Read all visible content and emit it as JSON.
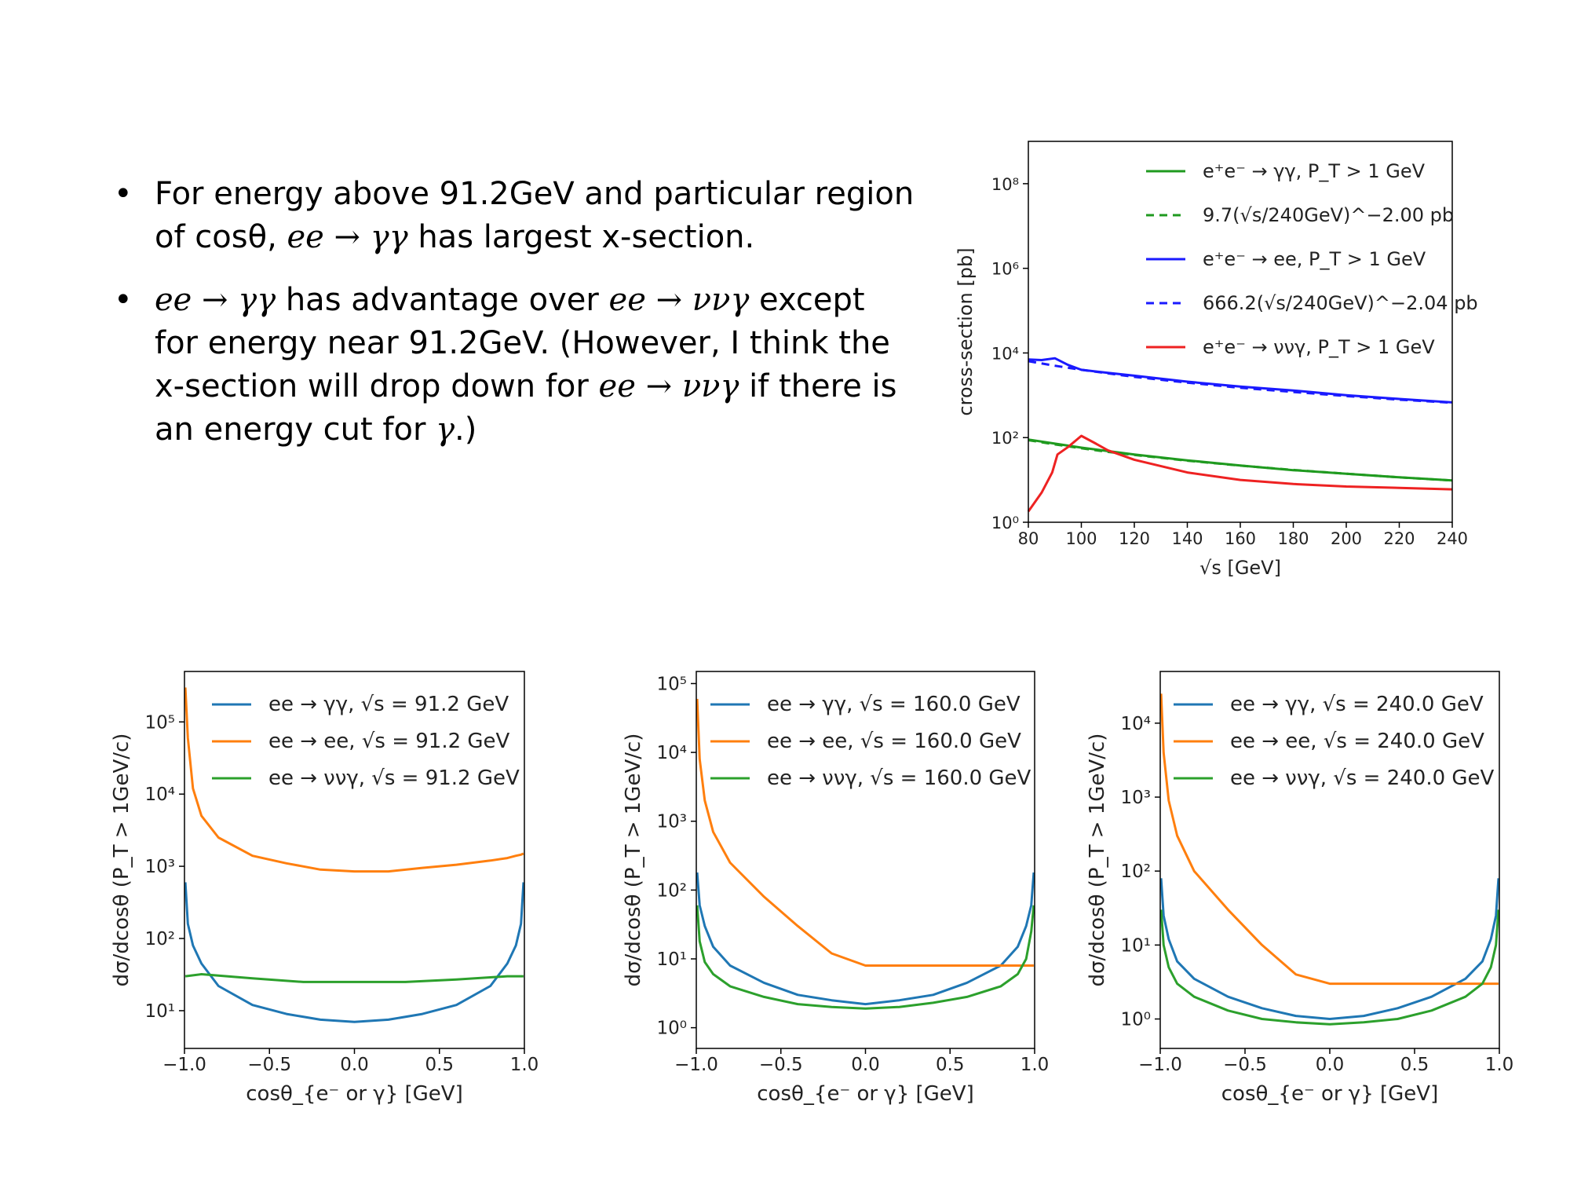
{
  "bullets": [
    {
      "parts": [
        {
          "t": "For energy above 91.2GeV and particular region of ",
          "m": false
        },
        {
          "t": "cosθ",
          "m": false
        },
        {
          "t": ", ",
          "m": false
        },
        {
          "t": "ee → γγ",
          "m": true
        },
        {
          "t": " has largest x-section.",
          "m": false
        }
      ]
    },
    {
      "parts": [
        {
          "t": "ee → γγ",
          "m": true
        },
        {
          "t": " has advantage over ",
          "m": false
        },
        {
          "t": "ee → ννγ",
          "m": true
        },
        {
          "t": " except for energy near 91.2GeV. (However, I think the x-section will drop down for ",
          "m": false
        },
        {
          "t": "ee → ννγ",
          "m": true
        },
        {
          "t": " if there is an energy cut for ",
          "m": false
        },
        {
          "t": "γ",
          "m": true
        },
        {
          "t": ".)",
          "m": false
        }
      ]
    }
  ],
  "chart_data": [
    {
      "type": "line",
      "xlabel": "√s [GeV]",
      "ylabel": "cross-section [pb]",
      "xlim": [
        80,
        240
      ],
      "ylim": [
        1,
        1000000000
      ],
      "yscale": "log",
      "xticks": [
        "80",
        "100",
        "120",
        "140",
        "160",
        "180",
        "200",
        "220",
        "240"
      ],
      "yticks": [
        "10⁰",
        "10²",
        "10⁴",
        "10⁶",
        "10⁸"
      ],
      "legend_position": "top-right",
      "series": [
        {
          "name": "e⁺e⁻ → γγ, P_T > 1 GeV",
          "color": "#1f9a1f",
          "dash": false,
          "x": [
            80,
            90,
            100,
            110,
            120,
            140,
            160,
            180,
            200,
            220,
            240
          ],
          "y": [
            90,
            72,
            58,
            48,
            40,
            29,
            22,
            17,
            14,
            11.5,
            9.7
          ]
        },
        {
          "name": "9.7(√s/240GeV)^−2.00 pb",
          "color": "#1f9a1f",
          "dash": true,
          "x": [
            80,
            90,
            100,
            110,
            120,
            140,
            160,
            180,
            200,
            220,
            240
          ],
          "y": [
            87,
            69,
            56,
            46,
            39,
            28.5,
            21.8,
            17.2,
            14,
            11.5,
            9.7
          ]
        },
        {
          "name": "e⁺e⁻ → ee, P_T > 1 GeV",
          "color": "#1a1aff",
          "dash": false,
          "x": [
            80,
            85,
            90,
            95,
            100,
            110,
            120,
            140,
            160,
            180,
            200,
            220,
            240
          ],
          "y": [
            7000,
            6800,
            7500,
            5200,
            4000,
            3400,
            2900,
            2100,
            1600,
            1300,
            1000,
            820,
            680
          ]
        },
        {
          "name": "666.2(√s/240GeV)^−2.04 pb",
          "color": "#1a1aff",
          "dash": true,
          "x": [
            80,
            90,
            100,
            110,
            120,
            140,
            160,
            180,
            200,
            220,
            240
          ],
          "y": [
            6400,
            5000,
            4000,
            3300,
            2720,
            1990,
            1500,
            1200,
            960,
            790,
            666
          ]
        },
        {
          "name": "e⁺e⁻ → ννγ, P_T > 1 GeV",
          "color": "#ee2222",
          "dash": false,
          "x": [
            80,
            85,
            89,
            91,
            95,
            100,
            105,
            110,
            120,
            140,
            160,
            180,
            200,
            220,
            240
          ],
          "y": [
            1.8,
            5,
            15,
            40,
            60,
            110,
            75,
            50,
            30,
            15,
            10,
            8,
            7,
            6.5,
            6
          ]
        }
      ]
    },
    {
      "type": "line",
      "xlabel": "cosθ_{e⁻ or γ} [GeV]",
      "ylabel": "dσ/dcosθ (P_T > 1GeV/c)",
      "xlim": [
        -1,
        1
      ],
      "ylim": [
        3,
        500000
      ],
      "yscale": "log",
      "xticks": [
        "−1.0",
        "−0.5",
        "0.0",
        "0.5",
        "1.0"
      ],
      "yticks": [
        "10¹",
        "10²",
        "10³",
        "10⁴",
        "10⁵"
      ],
      "legend_position": "top-left",
      "series": [
        {
          "name": "ee → γγ, √s = 91.2 GeV",
          "color": "#1f77b4",
          "x": [
            -0.995,
            -0.98,
            -0.95,
            -0.9,
            -0.8,
            -0.6,
            -0.4,
            -0.2,
            0,
            0.2,
            0.4,
            0.6,
            0.8,
            0.9,
            0.95,
            0.98,
            0.995
          ],
          "y": [
            600,
            160,
            80,
            45,
            22,
            12,
            9,
            7.5,
            7,
            7.5,
            9,
            12,
            22,
            45,
            80,
            160,
            600
          ]
        },
        {
          "name": "ee → ee, √s = 91.2 GeV",
          "color": "#ff7f0e",
          "x": [
            -0.995,
            -0.98,
            -0.95,
            -0.9,
            -0.8,
            -0.6,
            -0.4,
            -0.2,
            0,
            0.2,
            0.4,
            0.6,
            0.8,
            0.9,
            0.95,
            0.98,
            0.995
          ],
          "y": [
            300000,
            60000,
            12000,
            5000,
            2500,
            1400,
            1100,
            900,
            850,
            850,
            950,
            1050,
            1200,
            1300,
            1400,
            1450,
            1500
          ]
        },
        {
          "name": "ee → ννγ, √s = 91.2 GeV",
          "color": "#2ca02c",
          "x": [
            -0.995,
            -0.9,
            -0.6,
            -0.3,
            0,
            0.3,
            0.6,
            0.9,
            0.995
          ],
          "y": [
            30,
            32,
            28,
            25,
            25,
            25,
            27,
            30,
            30
          ]
        }
      ]
    },
    {
      "type": "line",
      "xlabel": "cosθ_{e⁻ or γ} [GeV]",
      "ylabel": "dσ/dcosθ (P_T > 1GeV/c)",
      "xlim": [
        -1,
        1
      ],
      "ylim": [
        0.5,
        150000
      ],
      "yscale": "log",
      "xticks": [
        "−1.0",
        "−0.5",
        "0.0",
        "0.5",
        "1.0"
      ],
      "yticks": [
        "10⁰",
        "10¹",
        "10²",
        "10³",
        "10⁴",
        "10⁵"
      ],
      "legend_position": "top-left",
      "series": [
        {
          "name": "ee → γγ, √s = 160.0 GeV",
          "color": "#1f77b4",
          "x": [
            -0.995,
            -0.98,
            -0.95,
            -0.9,
            -0.8,
            -0.6,
            -0.4,
            -0.2,
            0,
            0.2,
            0.4,
            0.6,
            0.8,
            0.9,
            0.95,
            0.98,
            0.995
          ],
          "y": [
            180,
            60,
            30,
            15,
            8,
            4.5,
            3,
            2.5,
            2.2,
            2.5,
            3,
            4.5,
            8,
            15,
            30,
            60,
            180
          ]
        },
        {
          "name": "ee → ee, √s = 160.0 GeV",
          "color": "#ff7f0e",
          "x": [
            -0.995,
            -0.98,
            -0.95,
            -0.9,
            -0.8,
            -0.6,
            -0.4,
            -0.2,
            0,
            0.2,
            0.4,
            0.6,
            0.8,
            0.9,
            0.95,
            0.98,
            0.995
          ],
          "y": [
            60000,
            8000,
            2000,
            700,
            250,
            80,
            30,
            12,
            8,
            8,
            8,
            8,
            8,
            8,
            8,
            8,
            8
          ]
        },
        {
          "name": "ee → ννγ, √s = 160.0 GeV",
          "color": "#2ca02c",
          "x": [
            -0.995,
            -0.98,
            -0.95,
            -0.9,
            -0.8,
            -0.6,
            -0.4,
            -0.2,
            0,
            0.2,
            0.4,
            0.6,
            0.8,
            0.9,
            0.95,
            0.98,
            0.995
          ],
          "y": [
            60,
            18,
            9,
            6,
            4,
            2.8,
            2.2,
            2,
            1.9,
            2,
            2.3,
            2.8,
            4,
            6,
            10,
            25,
            60
          ]
        }
      ]
    },
    {
      "type": "line",
      "xlabel": "cosθ_{e⁻ or γ} [GeV]",
      "ylabel": "dσ/dcosθ (P_T > 1GeV/c)",
      "xlim": [
        -1,
        1
      ],
      "ylim": [
        0.4,
        50000
      ],
      "yscale": "log",
      "xticks": [
        "−1.0",
        "−0.5",
        "0.0",
        "0.5",
        "1.0"
      ],
      "yticks": [
        "10⁰",
        "10¹",
        "10²",
        "10³",
        "10⁴"
      ],
      "legend_position": "top-left",
      "series": [
        {
          "name": "ee → γγ, √s = 240.0 GeV",
          "color": "#1f77b4",
          "x": [
            -0.995,
            -0.98,
            -0.95,
            -0.9,
            -0.8,
            -0.6,
            -0.4,
            -0.2,
            0,
            0.2,
            0.4,
            0.6,
            0.8,
            0.9,
            0.95,
            0.98,
            0.995
          ],
          "y": [
            80,
            25,
            12,
            6,
            3.5,
            2,
            1.4,
            1.1,
            1,
            1.1,
            1.4,
            2,
            3.5,
            6,
            12,
            25,
            80
          ]
        },
        {
          "name": "ee → ee, √s = 240.0 GeV",
          "color": "#ff7f0e",
          "x": [
            -0.995,
            -0.98,
            -0.95,
            -0.9,
            -0.8,
            -0.6,
            -0.4,
            -0.2,
            0,
            0.2,
            0.4,
            0.6,
            0.8,
            0.9,
            0.95,
            0.98,
            0.995
          ],
          "y": [
            25000,
            4000,
            900,
            300,
            100,
            30,
            10,
            4,
            3,
            3,
            3,
            3,
            3,
            3,
            3,
            3,
            3
          ]
        },
        {
          "name": "ee → ννγ, √s = 240.0 GeV",
          "color": "#2ca02c",
          "x": [
            -0.995,
            -0.98,
            -0.95,
            -0.9,
            -0.8,
            -0.6,
            -0.4,
            -0.2,
            0,
            0.2,
            0.4,
            0.6,
            0.8,
            0.9,
            0.95,
            0.98,
            0.995
          ],
          "y": [
            30,
            10,
            5,
            3,
            2,
            1.3,
            1,
            0.9,
            0.85,
            0.9,
            1,
            1.3,
            2,
            3,
            5,
            10,
            30
          ]
        }
      ]
    }
  ]
}
